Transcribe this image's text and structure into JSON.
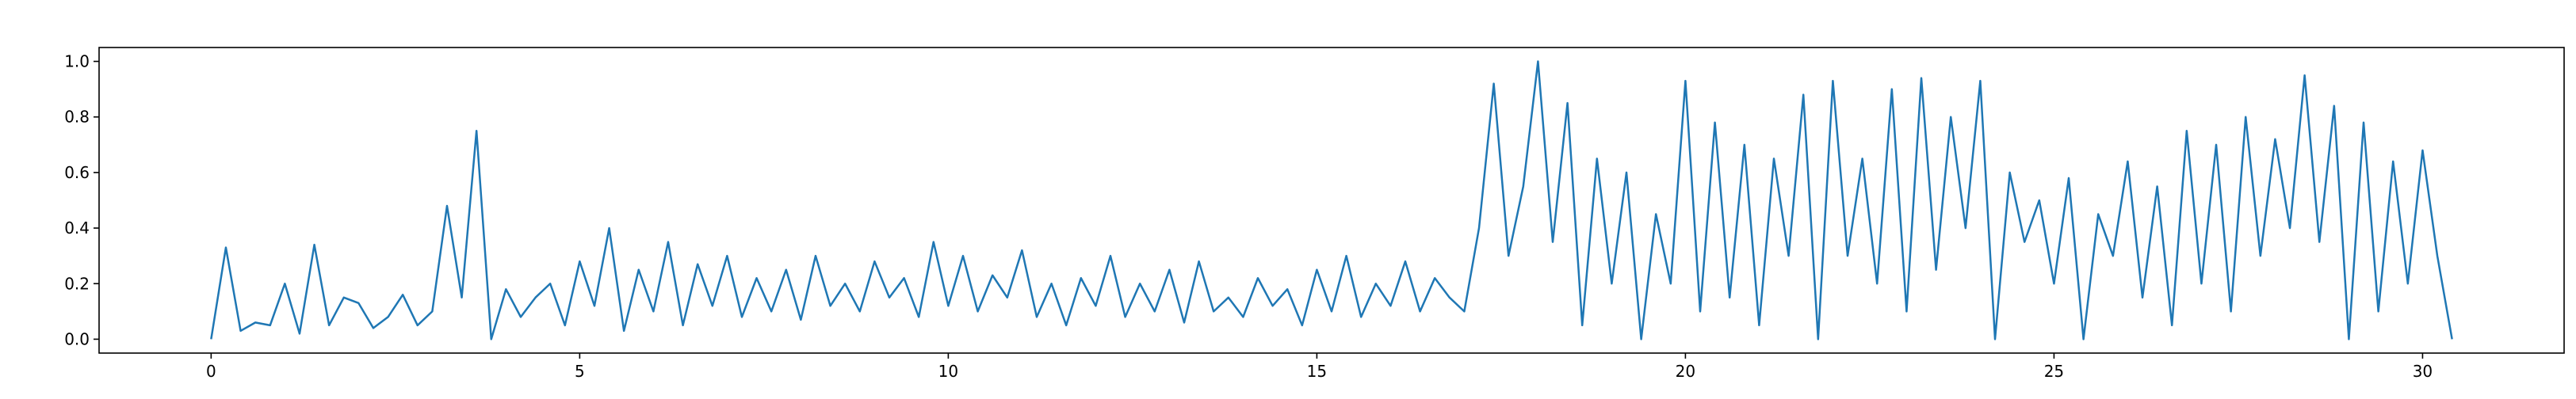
{
  "chart_data": {
    "type": "line",
    "color": "#1f77b4",
    "x": [
      0,
      0.2,
      0.4,
      0.6,
      0.8,
      1,
      1.2,
      1.4,
      1.6,
      1.8,
      2,
      2.2,
      2.4,
      2.6,
      2.8,
      3,
      3.2,
      3.4,
      3.6,
      3.8,
      4,
      4.2,
      4.4,
      4.6,
      4.8,
      5,
      5.2,
      5.4,
      5.6,
      5.8,
      6,
      6.2,
      6.4,
      6.6,
      6.8,
      7,
      7.2,
      7.4,
      7.6,
      7.8,
      8,
      8.2,
      8.4,
      8.6,
      8.8,
      9,
      9.2,
      9.4,
      9.6,
      9.8,
      10,
      10.2,
      10.4,
      10.6,
      10.8,
      11,
      11.2,
      11.4,
      11.6,
      11.8,
      12,
      12.2,
      12.4,
      12.6,
      12.8,
      13,
      13.2,
      13.4,
      13.6,
      13.8,
      14,
      14.2,
      14.4,
      14.6,
      14.8,
      15,
      15.2,
      15.4,
      15.6,
      15.8,
      16,
      16.2,
      16.4,
      16.6,
      16.8,
      17,
      17.2,
      17.4,
      17.6,
      17.8,
      18,
      18.2,
      18.4,
      18.6,
      18.8,
      19,
      19.2,
      19.4,
      19.6,
      19.8,
      20,
      20.2,
      20.4,
      20.6,
      20.8,
      21,
      21.2,
      21.4,
      21.6,
      21.8,
      22,
      22.2,
      22.4,
      22.6,
      22.8,
      23,
      23.2,
      23.4,
      23.6,
      23.8,
      24,
      24.2,
      24.4,
      24.6,
      24.8,
      25,
      25.2,
      25.4,
      25.6,
      25.8,
      26,
      26.2,
      26.4,
      26.6,
      26.8,
      27,
      27.2,
      27.4,
      27.6,
      27.8,
      28,
      28.2,
      28.4,
      28.6,
      28.8,
      29,
      29.2,
      29.4,
      29.6,
      29.8,
      30,
      30.2,
      30.4
    ],
    "values": [
      0.0,
      0.33,
      0.03,
      0.06,
      0.05,
      0.2,
      0.02,
      0.34,
      0.05,
      0.15,
      0.13,
      0.04,
      0.08,
      0.16,
      0.05,
      0.1,
      0.48,
      0.15,
      0.75,
      0.0,
      0.18,
      0.08,
      0.15,
      0.2,
      0.05,
      0.28,
      0.12,
      0.4,
      0.03,
      0.25,
      0.1,
      0.35,
      0.05,
      0.27,
      0.12,
      0.3,
      0.08,
      0.22,
      0.1,
      0.25,
      0.07,
      0.3,
      0.12,
      0.2,
      0.1,
      0.28,
      0.15,
      0.22,
      0.08,
      0.35,
      0.12,
      0.3,
      0.1,
      0.23,
      0.15,
      0.32,
      0.08,
      0.2,
      0.05,
      0.22,
      0.12,
      0.3,
      0.08,
      0.2,
      0.1,
      0.25,
      0.06,
      0.28,
      0.1,
      0.15,
      0.08,
      0.22,
      0.12,
      0.18,
      0.05,
      0.25,
      0.1,
      0.3,
      0.08,
      0.2,
      0.12,
      0.28,
      0.1,
      0.22,
      0.15,
      0.1,
      0.4,
      0.92,
      0.3,
      0.55,
      1.0,
      0.35,
      0.85,
      0.05,
      0.65,
      0.2,
      0.6,
      0.0,
      0.45,
      0.2,
      0.93,
      0.1,
      0.78,
      0.15,
      0.7,
      0.05,
      0.65,
      0.3,
      0.88,
      0.0,
      0.93,
      0.3,
      0.65,
      0.2,
      0.9,
      0.1,
      0.94,
      0.25,
      0.8,
      0.4,
      0.93,
      0.0,
      0.6,
      0.35,
      0.5,
      0.2,
      0.58,
      0.0,
      0.45,
      0.3,
      0.64,
      0.15,
      0.55,
      0.05,
      0.75,
      0.2,
      0.7,
      0.1,
      0.8,
      0.3,
      0.72,
      0.4,
      0.95,
      0.35,
      0.84,
      0.0,
      0.78,
      0.1,
      0.64,
      0.2,
      0.68,
      0.3,
      0.0
    ],
    "xlim": [
      -1.52,
      31.92
    ],
    "ylim": [
      -0.05,
      1.05
    ],
    "xticks": [
      0,
      5,
      10,
      15,
      20,
      25,
      30
    ],
    "yticks": [
      {
        "value": 0,
        "label": "0.0"
      },
      {
        "value": 0.2,
        "label": "0.2"
      },
      {
        "value": 0.4,
        "label": "0.4"
      },
      {
        "value": 0.6,
        "label": "0.6"
      },
      {
        "value": 0.8,
        "label": "0.8"
      },
      {
        "value": 1,
        "label": "1.0"
      }
    ]
  }
}
